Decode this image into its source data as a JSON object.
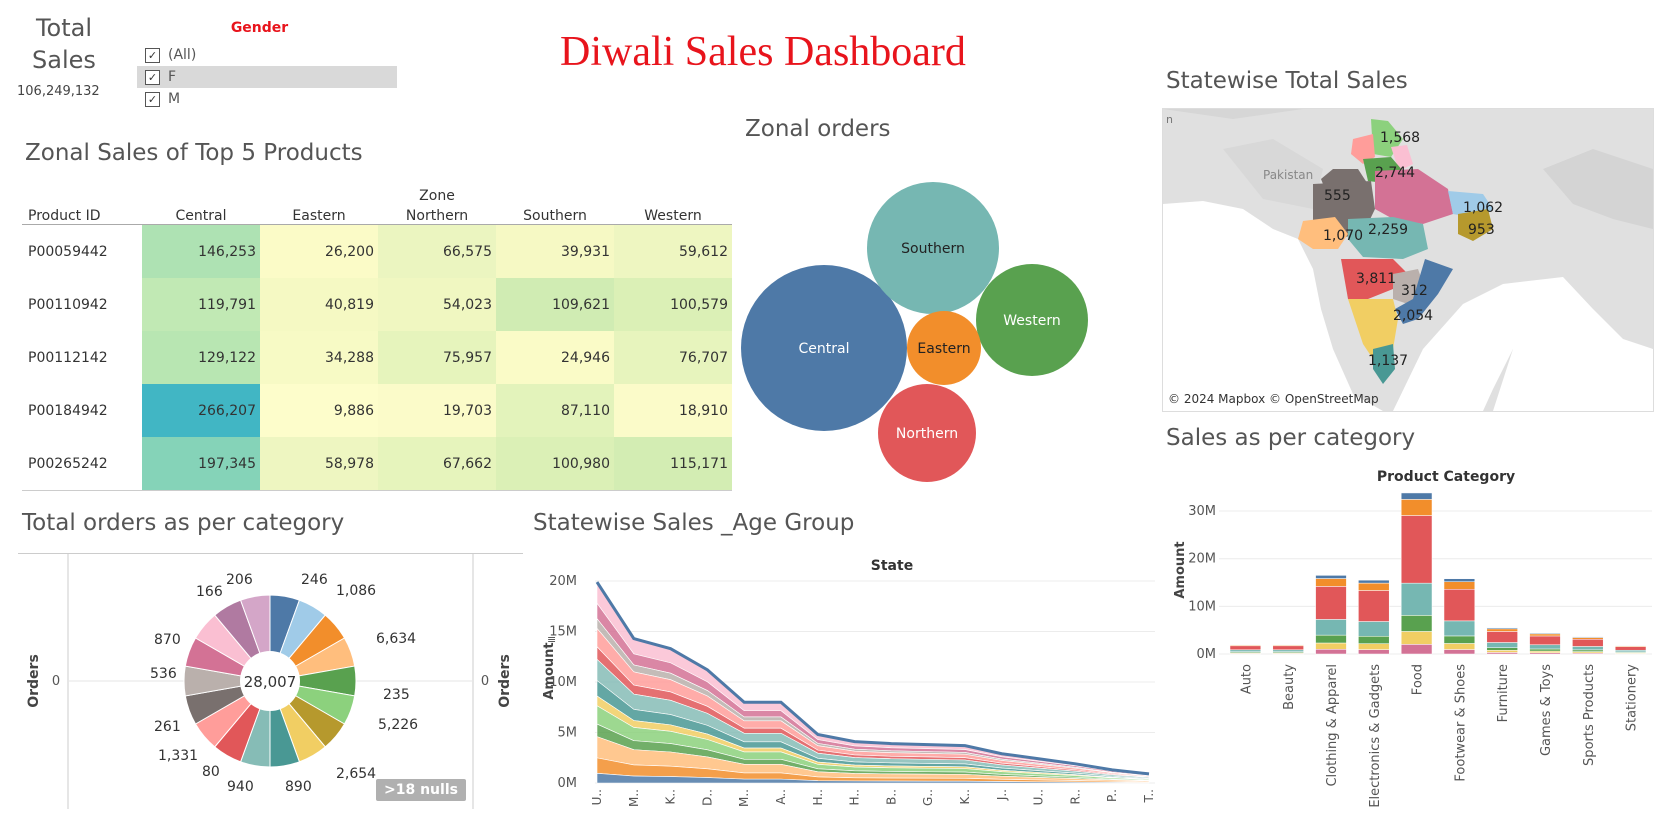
{
  "total_sales": {
    "label_line1": "Total",
    "label_line2": "Sales",
    "value": "106,249,132"
  },
  "gender_filter": {
    "title": "Gender",
    "items": [
      {
        "label": "(All)",
        "checked": "✓"
      },
      {
        "label": "F",
        "checked": "✓"
      },
      {
        "label": "M",
        "checked": "✓"
      }
    ]
  },
  "dashboard_title": "Diwali Sales Dashboard",
  "zonal_table": {
    "title": "Zonal  Sales of Top 5 Products",
    "zone_label": "Zone",
    "columns": [
      "Product ID",
      "Central",
      "Eastern",
      "Northern",
      "Southern",
      "Western"
    ],
    "rows": [
      {
        "product": "P00059442",
        "values": [
          "146,253",
          "26,200",
          "66,575",
          "39,931",
          "59,612"
        ]
      },
      {
        "product": "P00110942",
        "values": [
          "119,791",
          "40,819",
          "54,023",
          "109,621",
          "100,579"
        ]
      },
      {
        "product": "P00112142",
        "values": [
          "129,122",
          "34,288",
          "75,957",
          "24,946",
          "76,707"
        ]
      },
      {
        "product": "P00184942",
        "values": [
          "266,207",
          "9,886",
          "19,703",
          "87,110",
          "18,910"
        ]
      },
      {
        "product": "P00265242",
        "values": [
          "197,345",
          "58,978",
          "67,662",
          "100,980",
          "115,171"
        ]
      }
    ]
  },
  "zonal_orders": {
    "title": "Zonal orders",
    "bubbles": [
      {
        "label": "Central",
        "color": "#4e79a7"
      },
      {
        "label": "Southern",
        "color": "#76b7b2"
      },
      {
        "label": "Western",
        "color": "#59a14f"
      },
      {
        "label": "Eastern",
        "color": "#f28e2b"
      },
      {
        "label": "Northern",
        "color": "#e15759"
      }
    ]
  },
  "statewise_map": {
    "title": "Statewise Total Sales",
    "place_label": "Pakistan",
    "edge_label": "n",
    "labels": [
      "1,568",
      "2,744",
      "555",
      "1,062",
      "2,259",
      "953",
      "1,070",
      "3,811",
      "312",
      "2,054",
      "1,137"
    ],
    "attribution": "© 2024 Mapbox © OpenStreetMap"
  },
  "total_orders": {
    "title": "Total orders as per category",
    "center_label": "28,007",
    "axis_left": "Orders",
    "axis_right": "Orders",
    "zero_left": "0",
    "zero_right": "0",
    "labels": [
      "246",
      "1,086",
      "6,634",
      "235",
      "5,226",
      "2,654",
      "890",
      "940",
      "80",
      "1,331",
      "261",
      "536",
      "870",
      "166",
      "206"
    ],
    "nulls_badge": ">18 nulls"
  },
  "chart_data": [
    {
      "type": "pie",
      "title": "Total orders as per category",
      "center_label": "28,007",
      "values": [
        246,
        1086,
        6634,
        235,
        5226,
        2654,
        890,
        940,
        80,
        1331,
        261,
        536,
        870,
        166,
        206
      ],
      "colors": [
        "#4e79a7",
        "#a0cbe8",
        "#f28e2b",
        "#ffbe7d",
        "#59a14f",
        "#8cd17d",
        "#b6992d",
        "#f1ce63",
        "#499894",
        "#86bcb6",
        "#e15759",
        "#ff9d9a",
        "#79706e",
        "#bab0ac",
        "#d37295",
        "#fabfd2",
        "#b07aa1",
        "#d4a6c8"
      ]
    },
    {
      "type": "area",
      "title": "Statewise Sales _Age Group",
      "header": "State",
      "ylabel": "Amount",
      "ylim": [
        0,
        20000000
      ],
      "yticks": [
        "0M",
        "5M",
        "10M",
        "15M",
        "20M"
      ],
      "categories": [
        "U..",
        "M..",
        "K..",
        "D..",
        "M..",
        "A..",
        "H..",
        "H..",
        "B..",
        "G..",
        "K..",
        "J..",
        "U..",
        "R..",
        "P..",
        "T.."
      ],
      "totals": [
        19900000,
        14300000,
        13300000,
        11200000,
        8000000,
        8000000,
        4800000,
        4100000,
        3900000,
        3800000,
        3700000,
        2900000,
        2400000,
        1900000,
        1300000,
        900000
      ],
      "colors": [
        "#4e79a7",
        "#f28e2b",
        "#ffbe7d",
        "#59a14f",
        "#8cd17d",
        "#f1ce63",
        "#499894",
        "#86bcb6",
        "#e15759",
        "#ff9d9a",
        "#bab0ac",
        "#d37295",
        "#fabfd2"
      ]
    },
    {
      "type": "bar",
      "title": "Sales as per category",
      "header": "Product Category",
      "ylabel": "Amount",
      "ylim": [
        0,
        34000000
      ],
      "yticks": [
        "0M",
        "10M",
        "20M",
        "30M"
      ],
      "categories": [
        "Auto",
        "Beauty",
        "Clothing & Apparel",
        "Electronics & Gadgets",
        "Food",
        "Footwear & Shoes",
        "Furniture",
        "Games & Toys",
        "Sports Products",
        "Stationery"
      ],
      "values": [
        2000000,
        2000000,
        16500000,
        15500000,
        33800000,
        15800000,
        5500000,
        4400000,
        3600000,
        1800000
      ],
      "segment_colors": [
        "#d37295",
        "#f1ce63",
        "#59a14f",
        "#76b7b2",
        "#e15759",
        "#f28e2b",
        "#4e79a7"
      ]
    }
  ]
}
